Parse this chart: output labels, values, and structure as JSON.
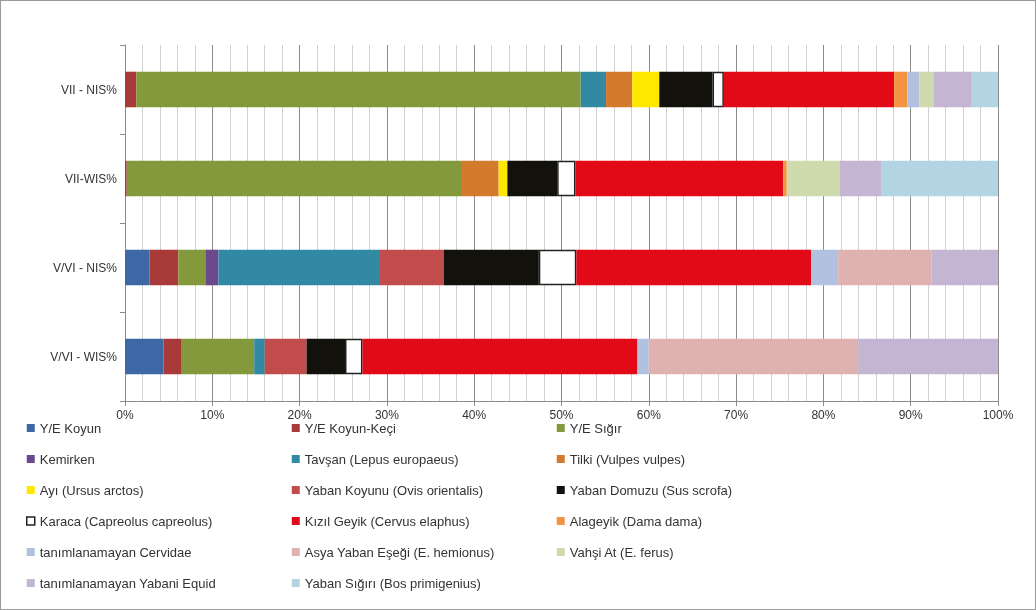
{
  "chart_data": {
    "type": "bar",
    "orientation": "horizontal",
    "stacked": true,
    "categories": [
      "VII - NIS%",
      "VII-WIS%",
      "V/VI - NIS%",
      "V/VI - WIS%"
    ],
    "series": [
      {
        "name": "Y/E Koyun",
        "color": "#3e67a5",
        "values": [
          null,
          null,
          2.8,
          4.4
        ]
      },
      {
        "name": "Y/E Koyun-Keçi",
        "color": "#a83a3a",
        "values": [
          1.3,
          0.2,
          3.3,
          2.1
        ]
      },
      {
        "name": "Y/E Sığır",
        "color": "#84993b",
        "values": [
          50.9,
          38.4,
          3.1,
          8.3
        ]
      },
      {
        "name": "Kemirken",
        "color": "#6a4a8c",
        "values": [
          null,
          null,
          1.5,
          null
        ]
      },
      {
        "name": "Tavşan (Lepus europaeus)",
        "color": "#3289a4",
        "values": [
          2.9,
          null,
          18.4,
          1.2
        ]
      },
      {
        "name": "Tilki (Vulpes vulpes)",
        "color": "#d47a2c",
        "values": [
          3.0,
          4.2,
          null,
          null
        ]
      },
      {
        "name": "Ayı (Ursus arctos)",
        "color": "#ffe800",
        "values": [
          3.1,
          1.0,
          null,
          null
        ]
      },
      {
        "name": "Yaban Koyunu (Ovis orientalis)",
        "color": "#c24b4b",
        "values": [
          null,
          null,
          7.4,
          4.8
        ]
      },
      {
        "name": "Yaban Domuzu (Sus scrofa)",
        "color": "#12110c",
        "values": [
          6.1,
          5.7,
          10.9,
          4.4
        ]
      },
      {
        "name": "Karaca (Capreolus capreolus)",
        "color": "#ffffff",
        "values": [
          1.3,
          2.1,
          4.3,
          2.0
        ]
      },
      {
        "name": "Kızıl Geyik (Cervus elaphus)",
        "color": "#e20a16",
        "values": [
          19.5,
          23.8,
          26.9,
          31.5
        ]
      },
      {
        "name": "Alageyik (Dama dama)",
        "color": "#f39443",
        "values": [
          1.5,
          0.4,
          null,
          null
        ]
      },
      {
        "name": "tanımlanamayan Cervidae",
        "color": "#b1c1df",
        "values": [
          1.4,
          null,
          3.1,
          1.3
        ]
      },
      {
        "name": "Asya Yaban Eşeği (E. hemionus)",
        "color": "#e0b1b1",
        "values": [
          null,
          null,
          10.7,
          24.0
        ]
      },
      {
        "name": "Vahşi At (E. ferus)",
        "color": "#cfdbac",
        "values": [
          1.6,
          6.1,
          null,
          null
        ]
      },
      {
        "name": "tanımlanamayan Yabani Equid",
        "color": "#c4b5d2",
        "values": [
          4.4,
          4.7,
          7.6,
          16.0
        ]
      },
      {
        "name": "Yaban Sığırı (Bos primigenius)",
        "color": "#b3d5e3",
        "values": [
          3.0,
          13.4,
          null,
          null
        ]
      }
    ],
    "xlim": [
      0,
      100
    ],
    "xticks": [
      {
        "value": 0,
        "label": "0%"
      },
      {
        "value": 10,
        "label": "10%"
      },
      {
        "value": 20,
        "label": "20%"
      },
      {
        "value": 30,
        "label": "30%"
      },
      {
        "value": 40,
        "label": "40%"
      },
      {
        "value": 50,
        "label": "50%"
      },
      {
        "value": 60,
        "label": "60%"
      },
      {
        "value": 70,
        "label": "70%"
      },
      {
        "value": 80,
        "label": "80%"
      },
      {
        "value": 90,
        "label": "90%"
      },
      {
        "value": 100,
        "label": "100%"
      }
    ],
    "grid": "x",
    "legend": "bottom"
  }
}
